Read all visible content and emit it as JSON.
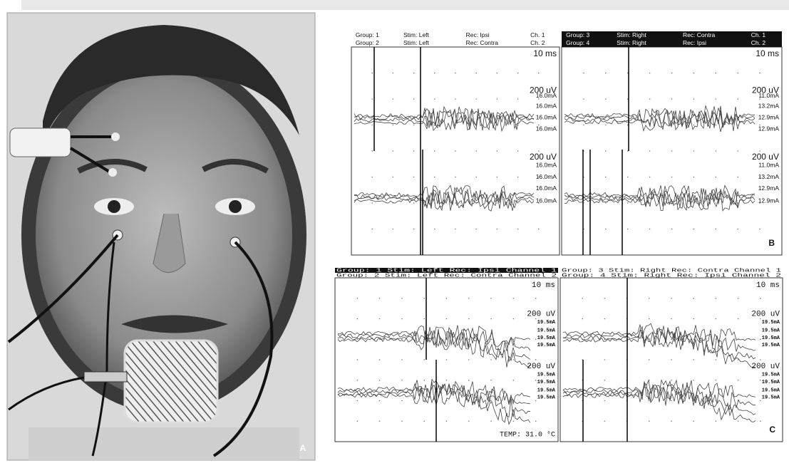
{
  "panel_a": {
    "label": "A"
  },
  "panel_b": {
    "label": "B",
    "plots": [
      {
        "header": [
          [
            "Group: 1",
            "Stim: Left",
            "Rec: Ipsi",
            "Ch. 1"
          ],
          [
            "Group: 2",
            "Stim: Left",
            "Rec: Contra",
            "Ch. 2"
          ]
        ],
        "time_scale": "10 ms",
        "traces": [
          {
            "scale": "200 uV",
            "currents": [
              "16.0mA",
              "16.0mA",
              "16.0mA",
              "16.0mA"
            ]
          },
          {
            "scale": "200 uV",
            "currents": [
              "16.0mA",
              "16.0mA",
              "16.0mA",
              "16.0mA"
            ]
          }
        ]
      },
      {
        "header": [
          [
            "Group: 3",
            "Stim: Right",
            "Rec: Contra",
            "Ch. 1"
          ],
          [
            "Group: 4",
            "Stim: Right",
            "Rec: Ipsi",
            "Ch. 2"
          ]
        ],
        "time_scale": "10 ms",
        "traces": [
          {
            "scale": "200 uV",
            "currents": [
              "11.0mA",
              "13.2mA",
              "12.9mA",
              "12.9mA"
            ]
          },
          {
            "scale": "200 uV",
            "currents": [
              "11.0mA",
              "13.2mA",
              "12.9mA",
              "12.9mA"
            ]
          }
        ]
      }
    ]
  },
  "panel_c": {
    "label": "C",
    "plots": [
      {
        "header": [
          "Group: 1 Stim: Left Rec: Ipsi Channel 1",
          "Group: 2 Stim: Left Rec: Contra Channel 2"
        ],
        "time_scale": "10 ms",
        "traces": [
          {
            "scale": "200 uV",
            "currents": [
              "19.5mA",
              "19.5mA",
              "19.5mA",
              "19.5mA"
            ]
          },
          {
            "scale": "200 uV",
            "currents": [
              "19.5mA",
              "19.5mA",
              "19.5mA",
              "19.5mA"
            ]
          }
        ],
        "temperature": "TEMP: 31.0 °C"
      },
      {
        "header": [
          "Group: 3 Stim: Right Rec: Contra Channel 1",
          "Group: 4 Stim: Right Rec: Ipsi Channel 2"
        ],
        "time_scale": "10 ms",
        "traces": [
          {
            "scale": "200 uV",
            "currents": [
              "19.5mA",
              "19.5mA",
              "19.5mA",
              "19.5mA"
            ]
          },
          {
            "scale": "200 uV",
            "currents": [
              "19.5mA",
              "19.5mA",
              "19.5mA",
              "19.5mA"
            ]
          }
        ]
      }
    ]
  }
}
